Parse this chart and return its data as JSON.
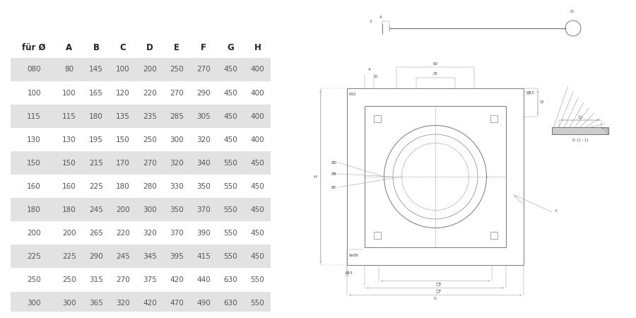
{
  "table_headers": [
    "für Ø",
    "A",
    "B",
    "C",
    "D",
    "E",
    "F",
    "G",
    "H"
  ],
  "table_rows": [
    [
      "080",
      "80",
      "145",
      "100",
      "200",
      "250",
      "270",
      "450",
      "400"
    ],
    [
      "100",
      "100",
      "165",
      "120",
      "220",
      "270",
      "290",
      "450",
      "400"
    ],
    [
      "115",
      "115",
      "180",
      "135",
      "235",
      "285",
      "305",
      "450",
      "400"
    ],
    [
      "130",
      "130",
      "195",
      "150",
      "250",
      "300",
      "320",
      "450",
      "400"
    ],
    [
      "150",
      "150",
      "215",
      "170",
      "270",
      "320",
      "340",
      "550",
      "450"
    ],
    [
      "160",
      "160",
      "225",
      "180",
      "280",
      "330",
      "350",
      "550",
      "450"
    ],
    [
      "180",
      "180",
      "245",
      "200",
      "300",
      "350",
      "370",
      "550",
      "450"
    ],
    [
      "200",
      "200",
      "265",
      "220",
      "320",
      "370",
      "390",
      "550",
      "450"
    ],
    [
      "225",
      "225",
      "290",
      "245",
      "345",
      "395",
      "415",
      "550",
      "450"
    ],
    [
      "250",
      "250",
      "315",
      "270",
      "375",
      "420",
      "440",
      "630",
      "550"
    ],
    [
      "300",
      "300",
      "365",
      "320",
      "420",
      "470",
      "490",
      "630",
      "550"
    ]
  ],
  "shaded_rows": [
    0,
    2,
    4,
    6,
    8,
    10
  ],
  "shade_color": "#e2e2e2",
  "bg_color": "#ffffff",
  "text_color": "#555555",
  "header_text_color": "#222222",
  "draw_color": "#777777",
  "dim_color": "#999999"
}
